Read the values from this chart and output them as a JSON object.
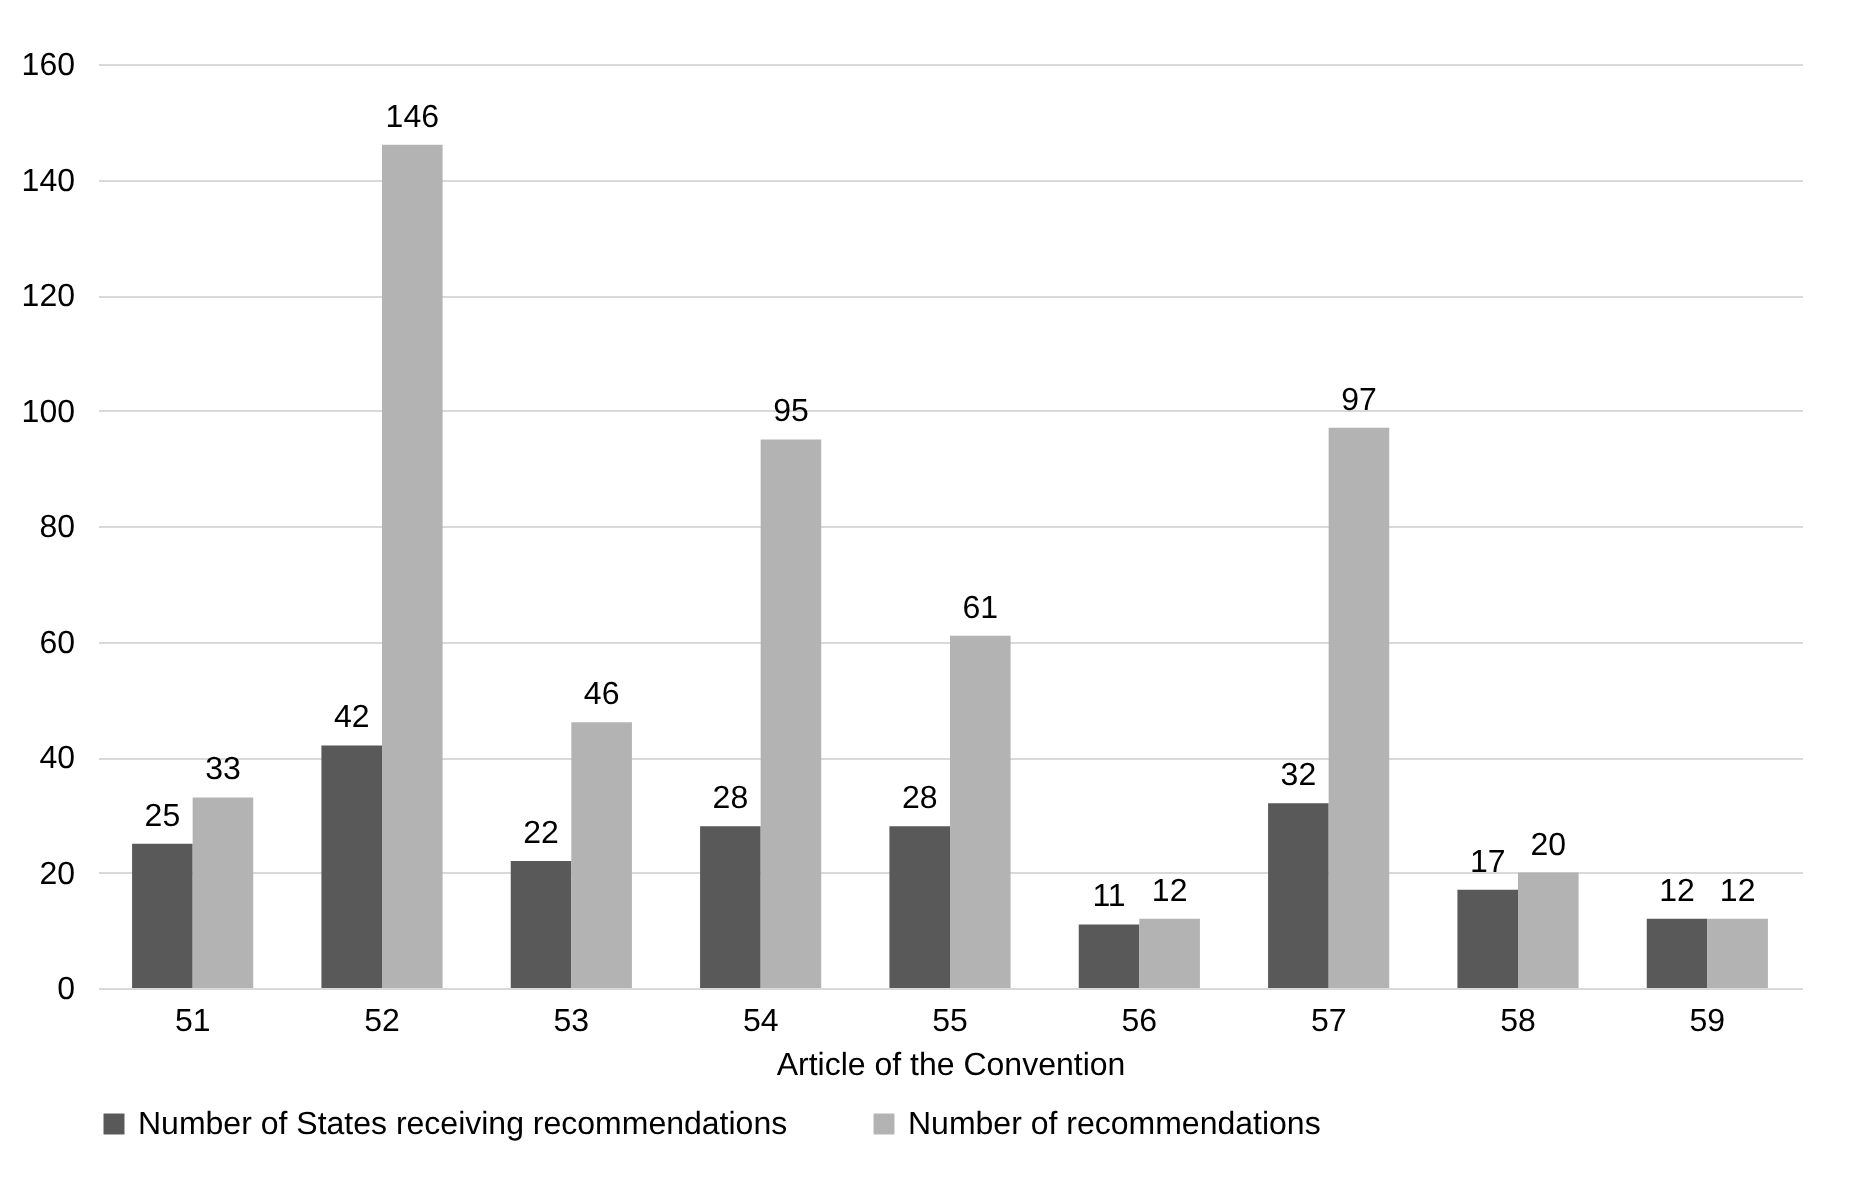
{
  "chart_data": {
    "type": "bar",
    "xlabel": "Article of the Convention",
    "categories": [
      "51",
      "52",
      "53",
      "54",
      "55",
      "56",
      "57",
      "58",
      "59"
    ],
    "series": [
      {
        "name": "Number of States receiving recommendations",
        "color": "#595959",
        "values": [
          25,
          42,
          22,
          28,
          28,
          11,
          32,
          17,
          12
        ]
      },
      {
        "name": "Number of recommendations",
        "color": "#b3b3b3",
        "values": [
          33,
          146,
          46,
          95,
          61,
          12,
          97,
          20,
          12
        ]
      }
    ],
    "ylim": [
      0,
      160
    ],
    "yticks": [
      0,
      20,
      40,
      60,
      80,
      100,
      120,
      140,
      160
    ],
    "grid": "y",
    "legend": "bottom",
    "data_labels": true
  }
}
